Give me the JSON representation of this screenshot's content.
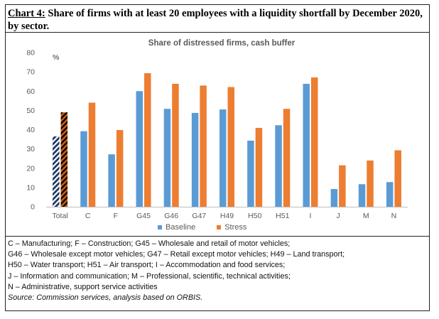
{
  "heading": {
    "chart_id": "Chart 4:",
    "text": " Share of firms with at least 20 employees with a liquidity shortfall by December 2020, by sector."
  },
  "colors": {
    "baseline": "#5b9bd5",
    "stress": "#ed7d31",
    "total_hatch_base": "#1f3864",
    "total_hatch_stress": "#c55a11"
  },
  "chart_data": {
    "type": "bar",
    "title": "Share of distressed firms, cash buffer",
    "ylabel": "%",
    "ylim": [
      0,
      80
    ],
    "yticks": [
      0,
      10,
      20,
      30,
      40,
      50,
      60,
      70,
      80
    ],
    "categories": [
      "Total",
      "C",
      "F",
      "G45",
      "G46",
      "G47",
      "H49",
      "H50",
      "H51",
      "I",
      "J",
      "M",
      "N"
    ],
    "series": [
      {
        "name": "Baseline",
        "values": [
          36.5,
          39.2,
          27.2,
          60,
          50.8,
          48.7,
          50.5,
          34.3,
          42.3,
          63.8,
          9.2,
          11.7,
          12.8
        ]
      },
      {
        "name": "Stress",
        "values": [
          49,
          54,
          39.8,
          69.3,
          63.8,
          62.9,
          62.1,
          40.9,
          50.8,
          67.1,
          21.5,
          24,
          29.3
        ]
      }
    ],
    "legend_position": "bottom",
    "grid": false
  },
  "notes": {
    "lines": [
      "C – Manufacturing; F – Construction; G45 – Wholesale and retail of motor vehicles;",
      "G46 – Wholesale except motor vehicles; G47 – Retail except motor vehicles; H49 – Land transport;",
      "H50 – Water transport; H51 – Air transport; I – Accommodation and food services;",
      "J – Information and communication; M – Professional, scientific, technical activities;",
      "N – Administrative, support service activities"
    ],
    "source": "Source: Commission services, analysis based on ORBIS."
  }
}
